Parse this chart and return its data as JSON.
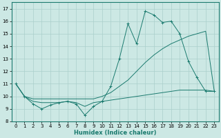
{
  "xlabel": "Humidex (Indice chaleur)",
  "background_color": "#cce8e4",
  "grid_color": "#aacfcb",
  "line_color": "#1a7a6e",
  "xlim": [
    -0.5,
    23.5
  ],
  "ylim": [
    8,
    17.5
  ],
  "xticks": [
    0,
    1,
    2,
    3,
    4,
    5,
    6,
    7,
    8,
    9,
    10,
    11,
    12,
    13,
    14,
    15,
    16,
    17,
    18,
    19,
    20,
    21,
    22,
    23
  ],
  "yticks": [
    8,
    9,
    10,
    11,
    12,
    13,
    14,
    15,
    16,
    17
  ],
  "series1_x": [
    0,
    1,
    2,
    3,
    4,
    5,
    6,
    7,
    8,
    9,
    10,
    11,
    12,
    13,
    14,
    15,
    16,
    17,
    18,
    19,
    20,
    21,
    22,
    23
  ],
  "series1_y": [
    11,
    10,
    9.4,
    9.0,
    9.3,
    9.5,
    9.6,
    9.4,
    8.5,
    9.2,
    9.6,
    10.8,
    13.0,
    15.8,
    14.2,
    16.8,
    16.5,
    15.9,
    16.0,
    15.0,
    12.8,
    11.5,
    10.4,
    10.4
  ],
  "series2_x": [
    0,
    1,
    2,
    3,
    4,
    5,
    6,
    7,
    8,
    9,
    10,
    11,
    12,
    13,
    14,
    15,
    16,
    17,
    18,
    19,
    20,
    21,
    22,
    23
  ],
  "series2_y": [
    11.0,
    10.0,
    9.8,
    9.8,
    9.8,
    9.8,
    9.8,
    9.8,
    9.8,
    9.8,
    10.0,
    10.3,
    10.8,
    11.3,
    12.0,
    12.7,
    13.3,
    13.8,
    14.2,
    14.5,
    14.8,
    15.0,
    15.2,
    10.4
  ],
  "series3_x": [
    0,
    1,
    2,
    3,
    4,
    5,
    6,
    7,
    8,
    9,
    10,
    11,
    12,
    13,
    14,
    15,
    16,
    17,
    18,
    19,
    20,
    21,
    22,
    23
  ],
  "series3_y": [
    11.0,
    10.0,
    9.6,
    9.5,
    9.5,
    9.5,
    9.6,
    9.5,
    9.2,
    9.5,
    9.6,
    9.7,
    9.8,
    9.9,
    10.0,
    10.1,
    10.2,
    10.3,
    10.4,
    10.5,
    10.5,
    10.5,
    10.5,
    10.4
  ]
}
